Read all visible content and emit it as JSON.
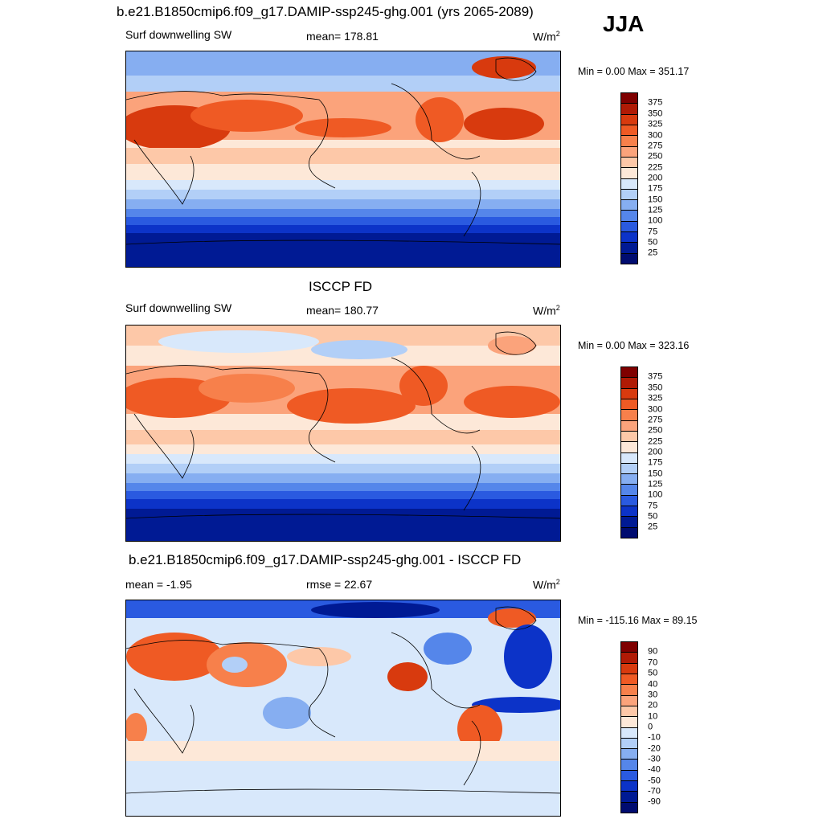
{
  "season": "JJA",
  "panels": [
    {
      "title": "b.e21.B1850cmip6.f09_g17.DAMIP-ssp245-ghg.001 (yrs 2065-2089)",
      "left_label": "Surf downwelling SW",
      "center_label": "mean= 178.81",
      "units": "W/m",
      "units_sup": "2",
      "minmax": "Min =   0.00 Max = 351.17",
      "colorbar_ticks": [
        "375",
        "350",
        "325",
        "300",
        "275",
        "250",
        "225",
        "200",
        "175",
        "150",
        "125",
        "100",
        "75",
        "50",
        "25"
      ]
    },
    {
      "title": "ISCCP FD",
      "left_label": "Surf downwelling SW",
      "center_label": "mean= 180.77",
      "units": "W/m",
      "units_sup": "2",
      "minmax": "Min =   0.00 Max = 323.16",
      "colorbar_ticks": [
        "375",
        "350",
        "325",
        "300",
        "275",
        "250",
        "225",
        "200",
        "175",
        "150",
        "125",
        "100",
        "75",
        "50",
        "25"
      ]
    },
    {
      "title": "b.e21.B1850cmip6.f09_g17.DAMIP-ssp245-ghg.001 - ISCCP FD",
      "left_label": "mean =  -1.95",
      "center_label": "rmse =  22.67",
      "units": "W/m",
      "units_sup": "2",
      "minmax": "Min = -115.16 Max =  89.15",
      "colorbar_ticks": [
        "90",
        "70",
        "50",
        "40",
        "30",
        "20",
        "10",
        "0",
        "-10",
        "-20",
        "-30",
        "-40",
        "-50",
        "-70",
        "-90"
      ]
    }
  ],
  "colors": {
    "abs_scale": [
      "#7f0000",
      "#b01a05",
      "#d83a0e",
      "#ef5a24",
      "#f7804b",
      "#fba37b",
      "#fdc8a8",
      "#fde8d8",
      "#d8e8fb",
      "#b2cff7",
      "#86aef1",
      "#5586ea",
      "#2a5ae0",
      "#0c33c8",
      "#001a94",
      "#000c70"
    ],
    "diff_scale": [
      "#7f0000",
      "#b01a05",
      "#d83a0e",
      "#ef5a24",
      "#f7804b",
      "#fba37b",
      "#fdc8a8",
      "#fde8d8",
      "#d8e8fb",
      "#b2cff7",
      "#86aef1",
      "#5586ea",
      "#2a5ae0",
      "#0c33c8",
      "#001a94",
      "#000c70"
    ]
  }
}
